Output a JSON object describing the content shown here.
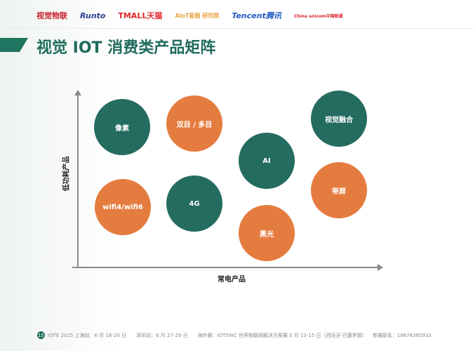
{
  "header": {
    "logos": [
      {
        "text": "视觉物联",
        "color": "#c8232c"
      },
      {
        "text": "Runto",
        "color": "#2a3f8f"
      },
      {
        "text": "TMALL天猫",
        "color": "#e0262c"
      },
      {
        "text": "AIoT星图 研究院",
        "color": "#e8a33d"
      },
      {
        "text": "Tencent腾讯",
        "color": "#1e5bc6"
      },
      {
        "text": "China unicom中国联通",
        "color": "#d7262c"
      }
    ]
  },
  "title": "视觉 IOT 消费类产品矩阵",
  "matrix": {
    "y_axis_label": "低功耗产品",
    "x_axis_label": "常电产品",
    "items": [
      {
        "label": "像素",
        "color": "teal"
      },
      {
        "label": "双目 / 多目",
        "color": "orange"
      },
      {
        "label": "视觉融合",
        "color": "teal"
      },
      {
        "label": "AI",
        "color": "teal"
      },
      {
        "label": "带屏",
        "color": "orange"
      },
      {
        "label": "wifi4/wifi6",
        "color": "orange"
      },
      {
        "label": "4G",
        "color": "teal"
      },
      {
        "label": "黑光",
        "color": "orange"
      }
    ]
  },
  "colors": {
    "teal": "#246b60",
    "orange": "#e57c3f",
    "title": "#1f6b5d"
  },
  "footer": {
    "page_number": "15",
    "shanghai": "IOTE 2025 上海站：6 月 18-20 日",
    "shenzhen": "深圳站：8 月 27-29 日",
    "overseas": "海外展：IOTSWC 世界物联网解决方案展 5 月 13-15 日（西班牙·巴塞罗那）",
    "contact": "参展联系：18676385933"
  }
}
